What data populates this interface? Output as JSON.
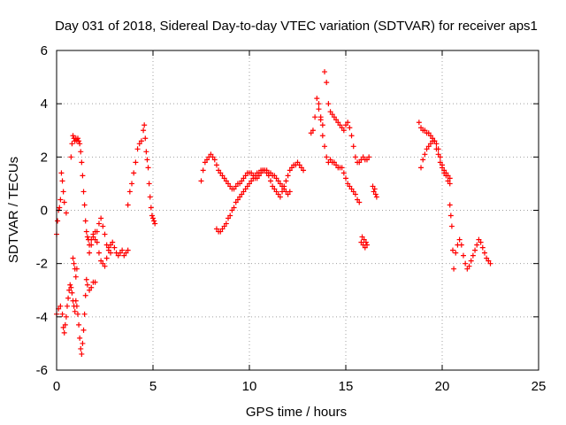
{
  "chart_data": {
    "type": "scatter",
    "title": "Day 031 of 2018, Sidereal Day-to-day VTEC variation (SDTVAR) for receiver aps1",
    "xlabel": "GPS time / hours",
    "ylabel": "SDTVAR / TECUs",
    "xlim": [
      0,
      25
    ],
    "ylim": [
      -6,
      6
    ],
    "xticks": [
      0,
      5,
      10,
      15,
      20,
      25
    ],
    "xtick_labels": [
      "0",
      "5",
      "10",
      "15",
      "20",
      "25"
    ],
    "yticks": [
      -6,
      -4,
      -2,
      0,
      2,
      4,
      6
    ],
    "ytick_labels": [
      "-6",
      "-4",
      "-2",
      "0",
      "2",
      "4",
      "6"
    ],
    "grid": true,
    "marker": "+",
    "color": "#ff0000",
    "series": [
      {
        "name": "aps1 SDTVAR",
        "x": [
          0.0,
          0.05,
          0.1,
          0.15,
          0.2,
          0.25,
          0.3,
          0.35,
          0.4,
          0.5
        ],
        "y": [
          -0.9,
          -0.4,
          0.0,
          0.1,
          0.4,
          1.4,
          1.1,
          0.7,
          0.3,
          -0.1
        ]
      },
      {
        "name": "aps1 SDTVAR",
        "x": [
          0.0,
          0.1,
          0.2,
          0.3,
          0.35,
          0.4,
          0.45,
          0.5,
          0.55,
          0.6,
          0.65,
          0.7,
          0.75,
          0.8,
          0.85,
          0.9,
          0.95,
          1.0,
          1.05,
          1.1,
          1.15,
          1.2,
          1.25,
          1.3,
          1.35,
          1.4,
          1.45,
          1.5,
          1.55,
          1.6,
          1.7,
          1.8,
          1.9,
          2.0
        ],
        "y": [
          -3.9,
          -3.7,
          -3.6,
          -3.9,
          -4.4,
          -4.6,
          -4.3,
          -4.0,
          -3.6,
          -3.3,
          -3.0,
          -2.8,
          -2.9,
          -3.1,
          -3.4,
          -3.6,
          -3.8,
          -3.4,
          -3.6,
          -3.9,
          -4.3,
          -4.8,
          -5.2,
          -5.4,
          -5.0,
          -4.5,
          -3.9,
          -3.2,
          -2.6,
          -2.8,
          -3.0,
          -2.9,
          -2.7,
          -2.7
        ]
      },
      {
        "name": "aps1 SDTVAR",
        "x": [
          0.75,
          0.8,
          0.85,
          0.9,
          0.95,
          1.0,
          1.05,
          1.1,
          1.15,
          1.2,
          1.25,
          1.3,
          1.35,
          1.4,
          1.45,
          1.5,
          1.55,
          1.6,
          1.65,
          1.7,
          1.8,
          1.9,
          2.0,
          2.1,
          2.2,
          2.3,
          2.4,
          2.5,
          2.6,
          2.7,
          2.8
        ],
        "y": [
          2.0,
          2.5,
          2.8,
          2.7,
          2.6,
          2.7,
          2.6,
          2.7,
          2.6,
          2.5,
          2.2,
          1.8,
          1.3,
          0.7,
          0.2,
          -0.4,
          -0.8,
          -1.0,
          -1.1,
          -1.3,
          -1.1,
          -0.9,
          -1.1,
          -0.8,
          -0.5,
          -0.3,
          -0.6,
          -0.9,
          -1.3,
          -1.4,
          -1.6
        ]
      },
      {
        "name": "aps1 SDTVAR",
        "x": [
          0.85,
          0.9,
          0.95,
          1.0,
          1.05
        ],
        "y": [
          -1.8,
          -2.0,
          -2.2,
          -2.5,
          -2.2
        ]
      },
      {
        "name": "aps1 SDTVAR",
        "x": [
          1.7,
          1.8,
          1.9,
          2.0,
          2.1,
          2.2,
          2.3,
          2.4,
          2.5,
          2.6,
          2.7,
          2.8,
          2.9,
          3.0,
          3.1,
          3.2,
          3.3,
          3.4,
          3.5,
          3.6,
          3.7
        ],
        "y": [
          -1.6,
          -1.3,
          -1.0,
          -0.8,
          -1.2,
          -1.6,
          -1.9,
          -2.0,
          -2.1,
          -1.8,
          -1.5,
          -1.3,
          -1.2,
          -1.4,
          -1.6,
          -1.7,
          -1.6,
          -1.5,
          -1.7,
          -1.6,
          -1.5
        ]
      },
      {
        "name": "aps1 SDTVAR",
        "x": [
          3.7,
          3.8,
          3.9,
          4.0,
          4.1,
          4.2,
          4.3,
          4.4,
          4.5,
          4.55,
          4.6,
          4.65,
          4.7,
          4.75,
          4.8,
          4.85,
          4.9,
          4.95,
          5.0,
          5.05,
          5.1
        ],
        "y": [
          0.2,
          0.7,
          1.0,
          1.4,
          1.8,
          2.3,
          2.5,
          2.6,
          3.0,
          3.2,
          2.7,
          2.2,
          1.9,
          1.6,
          1.0,
          0.5,
          0.1,
          -0.2,
          -0.3,
          -0.4,
          -0.5
        ]
      },
      {
        "name": "aps1 SDTVAR",
        "x": [
          7.5,
          7.6,
          7.7,
          7.8,
          7.9,
          8.0,
          8.1,
          8.2,
          8.3,
          8.4,
          8.5,
          8.6,
          8.7,
          8.8,
          8.9,
          9.0,
          9.1,
          9.2,
          9.3,
          9.4,
          9.5,
          9.6,
          9.7,
          9.8,
          9.9,
          10.0,
          10.1,
          10.2,
          10.3,
          10.4,
          10.5,
          10.6,
          10.7,
          10.8,
          10.9,
          11.0,
          11.1,
          11.2,
          11.3,
          11.4,
          11.5,
          11.6,
          11.7,
          11.8,
          11.9,
          12.0,
          12.1,
          12.2,
          12.3,
          12.4,
          12.5,
          12.6,
          12.7,
          12.8
        ],
        "y": [
          1.1,
          1.5,
          1.8,
          1.9,
          2.0,
          2.1,
          2.0,
          1.9,
          1.7,
          1.5,
          1.4,
          1.3,
          1.2,
          1.1,
          1.0,
          0.9,
          0.8,
          0.8,
          0.9,
          1.0,
          1.0,
          1.1,
          1.2,
          1.3,
          1.4,
          1.4,
          1.4,
          1.3,
          1.2,
          1.2,
          1.3,
          1.4,
          1.5,
          1.5,
          1.4,
          1.3,
          1.1,
          0.9,
          0.8,
          0.7,
          0.6,
          0.5,
          0.7,
          0.9,
          1.1,
          1.3,
          1.5,
          1.6,
          1.7,
          1.7,
          1.8,
          1.7,
          1.6,
          1.5
        ]
      },
      {
        "name": "aps1 SDTVAR",
        "x": [
          8.3,
          8.4,
          8.5,
          8.6,
          8.7,
          8.8,
          8.9,
          9.0,
          9.1,
          9.2,
          9.3,
          9.4,
          9.5,
          9.6,
          9.7,
          9.8,
          9.9,
          10.0,
          10.1,
          10.2,
          10.3,
          10.4,
          10.5,
          10.6,
          10.7,
          10.8,
          10.9,
          11.0,
          11.1,
          11.2,
          11.3,
          11.4,
          11.5,
          11.6,
          11.7,
          11.8,
          11.9,
          12.0,
          12.1
        ],
        "y": [
          -0.7,
          -0.8,
          -0.8,
          -0.7,
          -0.6,
          -0.5,
          -0.3,
          -0.2,
          0.0,
          0.1,
          0.3,
          0.4,
          0.5,
          0.6,
          0.7,
          0.8,
          0.9,
          1.0,
          1.1,
          1.2,
          1.3,
          1.4,
          1.4,
          1.5,
          1.5,
          1.5,
          1.5,
          1.4,
          1.4,
          1.3,
          1.3,
          1.2,
          1.1,
          1.0,
          0.9,
          0.8,
          0.7,
          0.6,
          0.7
        ]
      },
      {
        "name": "aps1 SDTVAR",
        "x": [
          13.2,
          13.3,
          13.4,
          13.5,
          13.6,
          13.7,
          13.8,
          13.9,
          14.0,
          14.1,
          14.2,
          14.3,
          14.4,
          14.5,
          14.6,
          14.7,
          14.8,
          14.9,
          15.0,
          15.1,
          15.2,
          15.3,
          15.4,
          15.5,
          15.6,
          15.7,
          15.8,
          15.9,
          16.0,
          16.1,
          16.2
        ],
        "y": [
          2.9,
          3.0,
          3.5,
          4.2,
          4.0,
          3.5,
          3.2,
          5.2,
          4.8,
          4.0,
          3.7,
          3.6,
          3.5,
          3.4,
          3.3,
          3.2,
          3.1,
          3.0,
          3.2,
          3.3,
          3.1,
          2.8,
          2.4,
          2.0,
          1.8,
          1.8,
          1.9,
          2.0,
          1.9,
          1.9,
          2.0
        ]
      },
      {
        "name": "aps1 SDTVAR",
        "x": [
          13.6,
          13.7,
          13.8,
          13.9,
          14.0,
          14.1,
          14.2,
          14.3,
          14.4,
          14.5,
          14.6,
          14.7,
          14.8,
          14.9,
          15.0,
          15.1,
          15.2,
          15.3,
          15.4,
          15.5,
          15.6,
          15.7
        ],
        "y": [
          3.8,
          3.4,
          2.8,
          2.4,
          2.0,
          1.8,
          1.9,
          1.8,
          1.8,
          1.7,
          1.6,
          1.6,
          1.6,
          1.4,
          1.2,
          1.0,
          0.9,
          0.8,
          0.7,
          0.6,
          0.4,
          0.3
        ]
      },
      {
        "name": "aps1 SDTVAR",
        "x": [
          15.8,
          15.85,
          15.9,
          15.95,
          16.0,
          16.05,
          16.1,
          16.4,
          16.45,
          16.5,
          16.55,
          16.6
        ],
        "y": [
          -1.2,
          -1.0,
          -1.3,
          -1.1,
          -1.4,
          -1.2,
          -1.3,
          0.9,
          0.7,
          0.8,
          0.6,
          0.5
        ]
      },
      {
        "name": "aps1 SDTVAR",
        "x": [
          18.8,
          18.9,
          19.0,
          19.1,
          19.2,
          19.3,
          19.4,
          19.5,
          19.6,
          19.7,
          19.8,
          19.9,
          20.0,
          20.1,
          20.2,
          20.3,
          20.4
        ],
        "y": [
          3.3,
          3.1,
          3.0,
          3.0,
          2.9,
          2.9,
          2.8,
          2.7,
          2.6,
          2.3,
          2.1,
          1.8,
          1.6,
          1.4,
          1.3,
          1.1,
          1.0
        ]
      },
      {
        "name": "aps1 SDTVAR",
        "x": [
          18.9,
          19.0,
          19.1,
          19.2,
          19.3,
          19.4,
          19.5,
          19.6,
          19.7,
          19.8,
          19.9,
          20.0,
          20.1,
          20.2,
          20.3,
          20.4
        ],
        "y": [
          1.6,
          1.9,
          2.1,
          2.3,
          2.4,
          2.5,
          2.6,
          2.6,
          2.5,
          2.3,
          2.0,
          1.7,
          1.5,
          1.4,
          1.3,
          1.2
        ]
      },
      {
        "name": "aps1 SDTVAR",
        "x": [
          20.4,
          20.45,
          20.5,
          20.55,
          20.6,
          20.7,
          20.8,
          20.9,
          21.0,
          21.1,
          21.2,
          21.3,
          21.4,
          21.5,
          21.6,
          21.7,
          21.8,
          21.9,
          22.0,
          22.1,
          22.2,
          22.3,
          22.4,
          22.5
        ],
        "y": [
          0.2,
          -0.2,
          -0.6,
          -1.5,
          -2.2,
          -1.6,
          -1.3,
          -1.1,
          -1.3,
          -1.7,
          -2.0,
          -2.2,
          -2.1,
          -1.9,
          -1.7,
          -1.5,
          -1.3,
          -1.1,
          -1.2,
          -1.4,
          -1.6,
          -1.8,
          -1.9,
          -2.0
        ]
      }
    ]
  }
}
